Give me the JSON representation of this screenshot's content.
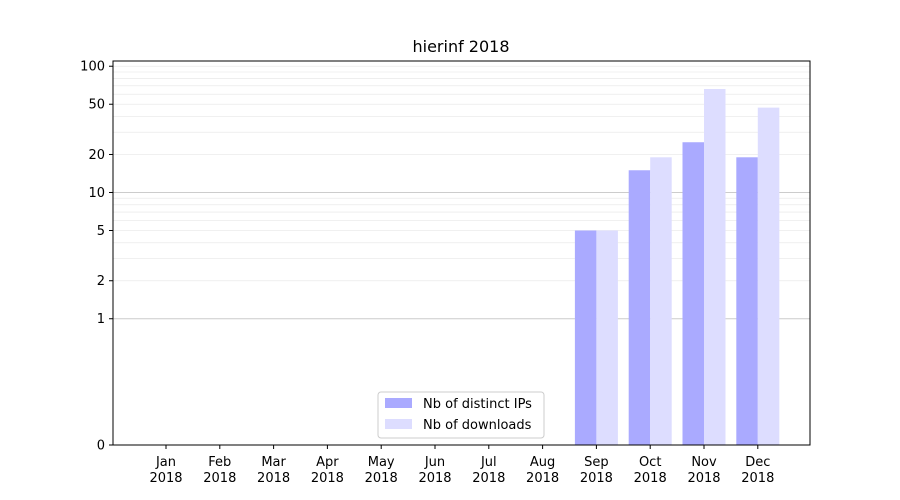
{
  "chart_data": {
    "type": "bar",
    "title": "hierinf 2018",
    "xlabel": "",
    "ylabel": "",
    "y_scale": "symlog",
    "ylim": [
      0,
      110
    ],
    "y_ticks": [
      0,
      1,
      2,
      5,
      10,
      20,
      50,
      100
    ],
    "y_tick_labels": [
      "0",
      "1",
      "2",
      "5",
      "10",
      "20",
      "50",
      "100"
    ],
    "categories": [
      [
        "Jan",
        "2018"
      ],
      [
        "Feb",
        "2018"
      ],
      [
        "Mar",
        "2018"
      ],
      [
        "Apr",
        "2018"
      ],
      [
        "May",
        "2018"
      ],
      [
        "Jun",
        "2018"
      ],
      [
        "Jul",
        "2018"
      ],
      [
        "Aug",
        "2018"
      ],
      [
        "Sep",
        "2018"
      ],
      [
        "Oct",
        "2018"
      ],
      [
        "Nov",
        "2018"
      ],
      [
        "Dec",
        "2018"
      ]
    ],
    "series": [
      {
        "name": "Nb of distinct IPs",
        "color": "#aaaaff",
        "values": [
          0,
          0,
          0,
          0,
          0,
          0,
          0,
          0,
          5,
          15,
          25,
          19
        ]
      },
      {
        "name": "Nb of downloads",
        "color": "#ddddff",
        "values": [
          0,
          0,
          0,
          0,
          0,
          0,
          0,
          0,
          5,
          19,
          66,
          47
        ]
      }
    ],
    "grid": true,
    "legend_position": "bottom-center"
  }
}
